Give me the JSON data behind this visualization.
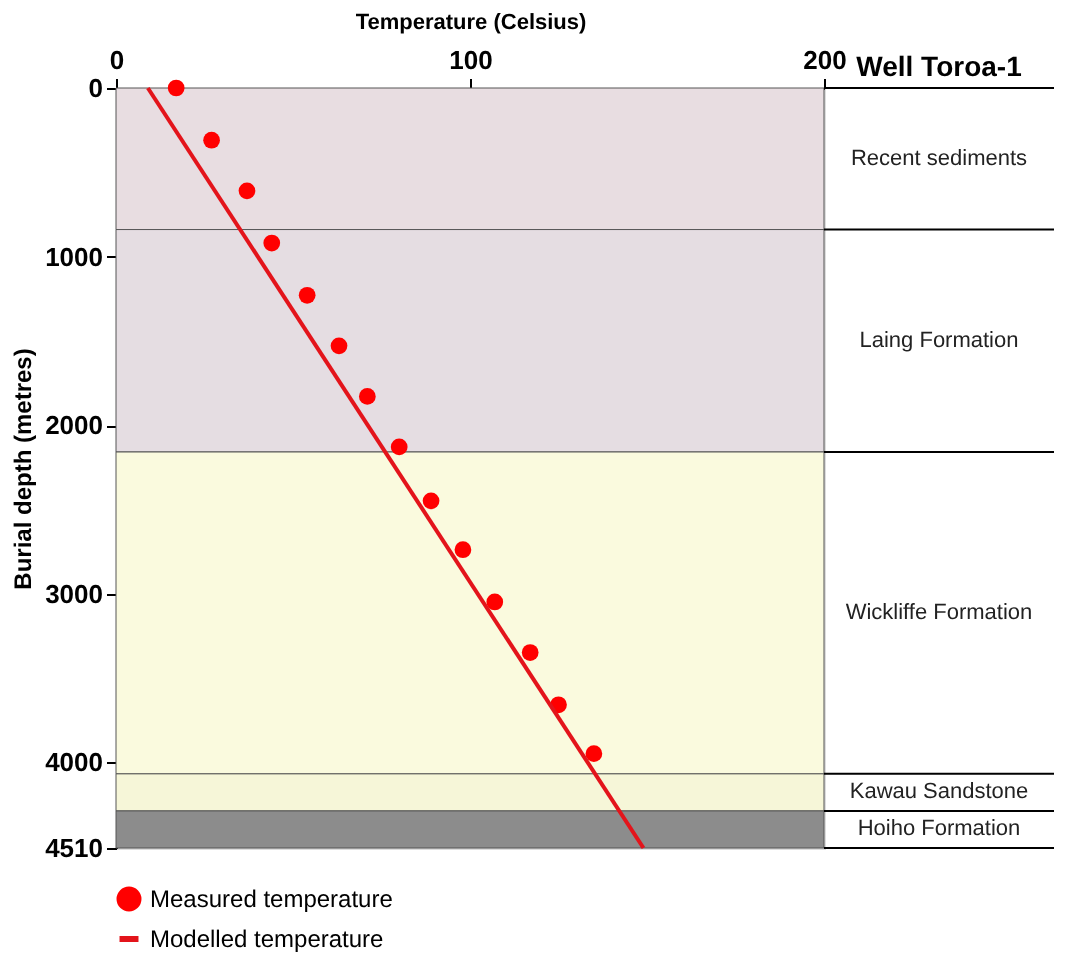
{
  "chart_data": {
    "type": "scatter",
    "xlabel": "Temperature (Celsius)",
    "ylabel": "Burial depth (metres)",
    "xlim": [
      0,
      200
    ],
    "xticks": [
      0,
      100,
      200
    ],
    "ylim": [
      4510,
      0
    ],
    "yticks": [
      0,
      {
        "value": 1000,
        "label": "1000"
      },
      {
        "value": 2000,
        "label": "2000"
      },
      {
        "value": 3000,
        "label": "3000"
      },
      {
        "value": 4000,
        "label": "4000"
      },
      {
        "value": 4510,
        "label": "4510"
      }
    ],
    "series": [
      {
        "name": "Measured temperature",
        "color": "#ff0000",
        "marker": "circle",
        "x": [
          17,
          27,
          37,
          44,
          54,
          63,
          71,
          80,
          89,
          98,
          107,
          117,
          125,
          135
        ],
        "values": [
          0,
          310,
          610,
          920,
          1230,
          1530,
          1830,
          2130,
          2450,
          2740,
          3050,
          3350,
          3660,
          3950
        ]
      },
      {
        "name": "Modelled temperature",
        "type": "line",
        "color": "#e3141b",
        "line_style": "solid",
        "x": [
          9,
          149
        ],
        "values": [
          0,
          4510
        ]
      }
    ],
    "bands": [
      {
        "axis": "y",
        "from": 0,
        "to": 840,
        "label": "Recent sediments",
        "color": "#e8dde1"
      },
      {
        "axis": "y",
        "from": 840,
        "to": 2160,
        "label": "Laing Formation",
        "color": "#e5dde2"
      },
      {
        "axis": "y",
        "from": 2160,
        "to": 4070,
        "label": "Wickliffe Formation",
        "color": "#fafade"
      },
      {
        "axis": "y",
        "from": 4070,
        "to": 4290,
        "label": "Kawau Sandstone",
        "color": "#f6f6d8"
      },
      {
        "axis": "y",
        "from": 4290,
        "to": 4510,
        "label": "Hoiho Formation",
        "color": "#8c8c8c"
      }
    ],
    "annotations": [
      "Well Toroa-1"
    ],
    "grid": false,
    "legend": "bottom"
  }
}
